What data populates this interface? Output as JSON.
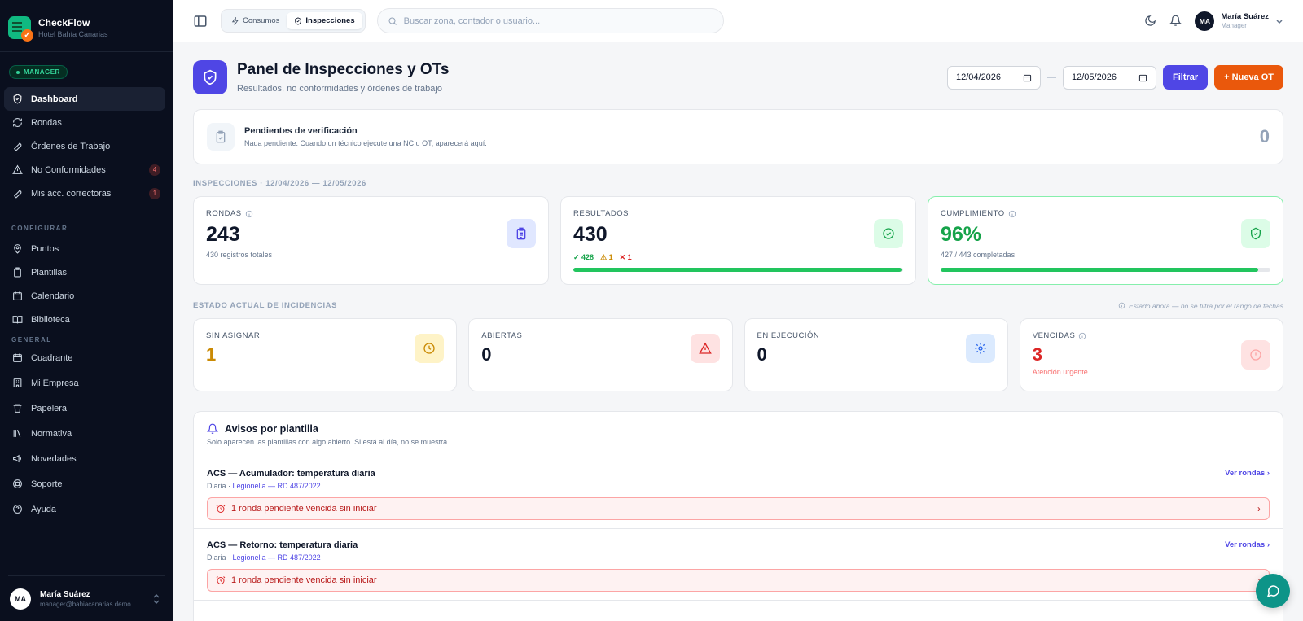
{
  "brand": {
    "name": "CheckFlow",
    "hotel": "Hotel Bahía Canarias"
  },
  "role": "MANAGER",
  "nav": [
    {
      "label": "Dashboard",
      "icon": "shield-icon",
      "active": true
    },
    {
      "label": "Rondas",
      "icon": "refresh-icon"
    },
    {
      "label": "Órdenes de Trabajo",
      "icon": "wrench-icon"
    },
    {
      "label": "No Conformidades",
      "icon": "warning-icon",
      "badge": "4"
    },
    {
      "label": "Mis acc. correctoras",
      "icon": "wrench-icon",
      "badge": "1"
    }
  ],
  "configure_label": "CONFIGURAR",
  "configure": [
    {
      "label": "Puntos",
      "icon": "pin-icon"
    },
    {
      "label": "Plantillas",
      "icon": "clipboard-icon"
    },
    {
      "label": "Calendario",
      "icon": "calendar-icon"
    },
    {
      "label": "Biblioteca",
      "icon": "book-icon"
    }
  ],
  "general_label": "GENERAL",
  "general": [
    {
      "label": "Cuadrante",
      "icon": "calendar-icon"
    },
    {
      "label": "Mi Empresa",
      "icon": "building-icon"
    },
    {
      "label": "Papelera",
      "icon": "trash-icon"
    },
    {
      "label": "Normativa",
      "icon": "library-icon"
    },
    {
      "label": "Novedades",
      "icon": "megaphone-icon"
    },
    {
      "label": "Soporte",
      "icon": "lifebuoy-icon"
    },
    {
      "label": "Ayuda",
      "icon": "help-icon"
    }
  ],
  "user": {
    "initials": "MA",
    "name": "María Suárez",
    "email": "manager@bahiacanarias.demo",
    "role": "Manager"
  },
  "topbar": {
    "tab_consumos": "Consumos",
    "tab_inspecciones": "Inspecciones",
    "search_placeholder": "Buscar zona, contador o usuario..."
  },
  "header": {
    "title": "Panel de Inspecciones y OTs",
    "subtitle": "Resultados, no conformidades y órdenes de trabajo",
    "date_from": "12/04/2026",
    "date_to": "12/05/2026",
    "dash": "—",
    "filter": "Filtrar",
    "new_ot": "+ Nueva OT"
  },
  "pending": {
    "title": "Pendientes de verificación",
    "subtitle": "Nada pendiente. Cuando un técnico ejecute una NC u OT, aparecerá aquí.",
    "count": "0"
  },
  "inspections_label": "INSPECCIONES · 12/04/2026 — 12/05/2026",
  "stats": {
    "rondas": {
      "label": "RONDAS",
      "value": "243",
      "sub": "430 registros totales"
    },
    "resultados": {
      "label": "RESULTADOS",
      "value": "430",
      "ok": "✓ 428",
      "warn": "⚠ 1",
      "fail": "✕ 1",
      "progress": 0.995
    },
    "cumplimiento": {
      "label": "CUMPLIMIENTO",
      "value": "96%",
      "sub": "427 / 443 completadas",
      "progress": 0.964
    }
  },
  "incidents_label": "ESTADO ACTUAL DE INCIDENCIAS",
  "incidents_note": "Estado ahora — no se filtra por el rango de fechas",
  "incidents": {
    "sin_asignar": {
      "label": "SIN ASIGNAR",
      "value": "1"
    },
    "abiertas": {
      "label": "ABIERTAS",
      "value": "0"
    },
    "ejecucion": {
      "label": "EN EJECUCIÓN",
      "value": "0"
    },
    "vencidas": {
      "label": "VENCIDAS",
      "value": "3",
      "sub": "Atención urgente"
    }
  },
  "avisos": {
    "title": "Avisos por plantilla",
    "subtitle": "Solo aparecen las plantillas con algo abierto. Si está al día, no se muestra.",
    "rows": [
      {
        "title": "ACS — Acumulador: temperatura diaria",
        "freq": "Diaria · ",
        "norm": "Legionella — RD 487/2022",
        "link": "Ver rondas",
        "alert": "1 ronda pendiente vencida sin iniciar"
      },
      {
        "title": "ACS — Retorno: temperatura diaria",
        "freq": "Diaria · ",
        "norm": "Legionella — RD 487/2022",
        "link": "Ver rondas",
        "alert": "1 ronda pendiente vencida sin iniciar"
      }
    ]
  },
  "colors": {
    "accent": "#4f46e5",
    "orange": "#ea580c",
    "green": "#16a34a",
    "red": "#dc2626",
    "amber": "#ca8a04"
  }
}
